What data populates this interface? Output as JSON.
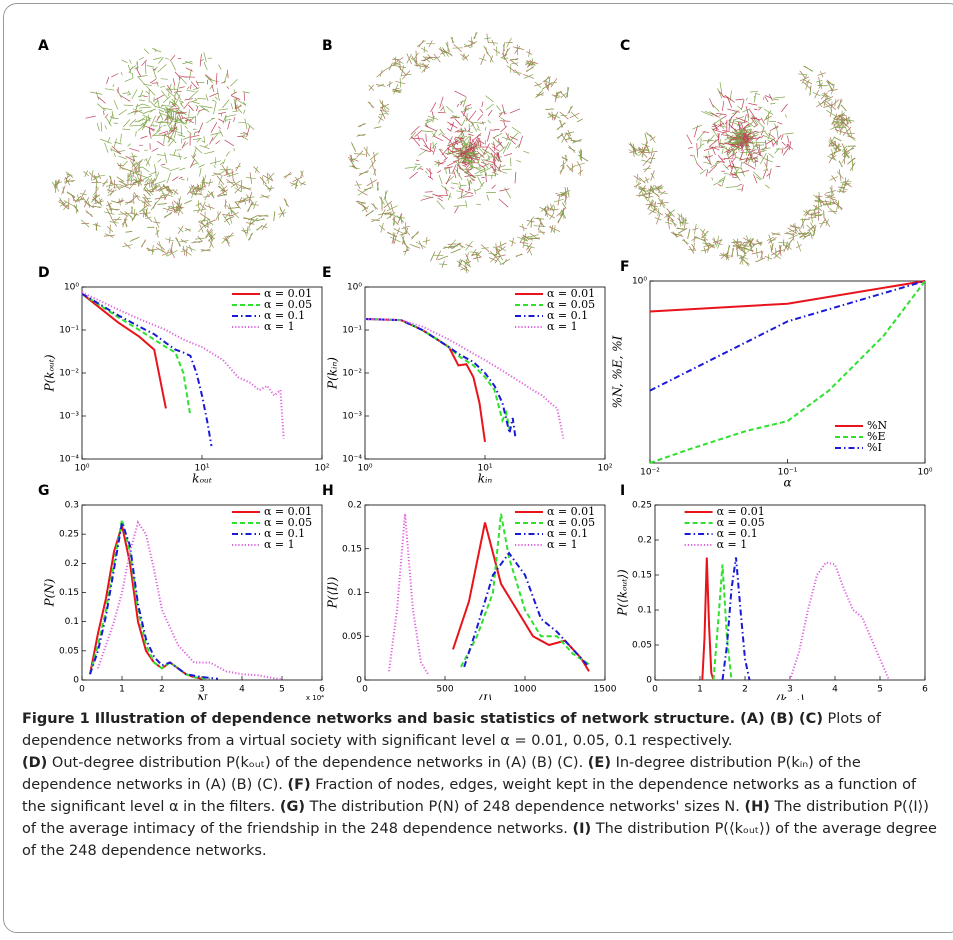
{
  "network_panels": [
    {
      "label": "A"
    },
    {
      "label": "B"
    },
    {
      "label": "C"
    }
  ],
  "chart_data": [
    {
      "type": "line",
      "label": "D",
      "xlabel": "kₒᵤₜ",
      "ylabel": "P(kₒᵤₜ)",
      "xscale": "log",
      "yscale": "log",
      "legend": "upper right",
      "xlim": [
        1,
        100
      ],
      "ylim": [
        0.0001,
        1
      ],
      "xticks": [
        {
          "value": 1,
          "label": "10⁰"
        },
        {
          "value": 10,
          "label": "10¹"
        },
        {
          "value": 100,
          "label": "10²"
        }
      ],
      "yticks": [
        {
          "value": 0.0001,
          "label": "10⁻⁴"
        },
        {
          "value": 0.001,
          "label": "10⁻³"
        },
        {
          "value": 0.01,
          "label": "10⁻²"
        },
        {
          "value": 0.1,
          "label": "10⁻¹"
        },
        {
          "value": 1,
          "label": "10⁰"
        }
      ],
      "series": [
        {
          "name": "α = 0.01",
          "color": "#e8131b",
          "dash": "solid",
          "x": [
            1,
            2,
            3,
            4,
            5
          ],
          "values": [
            0.7,
            0.15,
            0.07,
            0.035,
            0.0015
          ]
        },
        {
          "name": "α = 0.05",
          "color": "#2fe02f",
          "dash": "dashed",
          "x": [
            1,
            2,
            3,
            4,
            5,
            6,
            7,
            8
          ],
          "values": [
            0.7,
            0.2,
            0.1,
            0.06,
            0.04,
            0.03,
            0.01,
            0.001
          ]
        },
        {
          "name": "α = 0.1",
          "color": "#1a1ad6",
          "dash": "dashdot",
          "x": [
            1,
            2,
            3,
            4,
            5,
            6,
            7,
            8,
            9,
            10,
            11,
            12
          ],
          "values": [
            0.7,
            0.22,
            0.12,
            0.08,
            0.05,
            0.035,
            0.03,
            0.025,
            0.01,
            0.003,
            0.0008,
            0.0002
          ]
        },
        {
          "name": "α = 1",
          "color": "#e060e0",
          "dash": "dotted",
          "x": [
            1,
            2,
            3,
            5,
            7,
            10,
            15,
            20,
            25,
            30,
            35,
            40,
            45,
            48
          ],
          "values": [
            0.75,
            0.3,
            0.18,
            0.1,
            0.06,
            0.04,
            0.02,
            0.008,
            0.006,
            0.004,
            0.005,
            0.003,
            0.004,
            0.0003
          ]
        }
      ]
    },
    {
      "type": "line",
      "label": "E",
      "xlabel": "kᵢₙ",
      "ylabel": "P(kᵢₙ)",
      "xscale": "log",
      "yscale": "log",
      "legend": "upper right",
      "xlim": [
        1,
        100
      ],
      "ylim": [
        0.0001,
        1
      ],
      "xticks": [
        {
          "value": 1,
          "label": "10⁰"
        },
        {
          "value": 10,
          "label": "10¹"
        },
        {
          "value": 100,
          "label": "10²"
        }
      ],
      "yticks": [
        {
          "value": 0.0001,
          "label": "10⁻⁴"
        },
        {
          "value": 0.001,
          "label": "10⁻³"
        },
        {
          "value": 0.01,
          "label": "10⁻²"
        },
        {
          "value": 0.1,
          "label": "10⁻¹"
        },
        {
          "value": 1,
          "label": "10⁰"
        }
      ],
      "series": [
        {
          "name": "α = 0.01",
          "color": "#e8131b",
          "dash": "solid",
          "x": [
            1,
            2,
            3,
            4,
            5,
            6,
            7,
            8,
            9,
            10
          ],
          "values": [
            0.18,
            0.17,
            0.1,
            0.06,
            0.04,
            0.015,
            0.016,
            0.008,
            0.002,
            0.00025
          ]
        },
        {
          "name": "α = 0.05",
          "color": "#2fe02f",
          "dash": "dashed",
          "x": [
            1,
            2,
            3,
            4,
            5,
            6,
            8,
            10,
            12,
            14,
            15,
            16
          ],
          "values": [
            0.18,
            0.17,
            0.1,
            0.06,
            0.04,
            0.025,
            0.015,
            0.008,
            0.004,
            0.0008,
            0.0012,
            0.0005
          ]
        },
        {
          "name": "α = 0.1",
          "color": "#1a1ad6",
          "dash": "dashdot",
          "x": [
            1,
            2,
            3,
            4,
            5,
            6,
            8,
            10,
            12,
            14,
            16,
            17,
            18
          ],
          "values": [
            0.18,
            0.17,
            0.1,
            0.06,
            0.04,
            0.028,
            0.018,
            0.01,
            0.005,
            0.002,
            0.0004,
            0.0009,
            0.0003
          ]
        },
        {
          "name": "α = 1",
          "color": "#e060e0",
          "dash": "dotted",
          "x": [
            1,
            2,
            3,
            5,
            7,
            10,
            15,
            20,
            25,
            30,
            35,
            40,
            45
          ],
          "values": [
            0.18,
            0.17,
            0.12,
            0.06,
            0.035,
            0.02,
            0.01,
            0.006,
            0.004,
            0.003,
            0.002,
            0.0015,
            0.0003
          ]
        }
      ]
    },
    {
      "type": "line",
      "label": "F",
      "xlabel": "α",
      "ylabel": "%N, %E, %I",
      "xscale": "log",
      "yscale": "log",
      "legend": "lower right",
      "xlim": [
        0.01,
        1
      ],
      "ylim": [
        0.1,
        1
      ],
      "xticks": [
        {
          "value": 0.01,
          "label": "10⁻²"
        },
        {
          "value": 0.1,
          "label": "10⁻¹"
        },
        {
          "value": 1,
          "label": "10⁰"
        }
      ],
      "yticks": [
        {
          "value": 1,
          "label": "10⁰"
        }
      ],
      "series": [
        {
          "name": "%N",
          "color": "#e8131b",
          "dash": "solid",
          "x": [
            0.01,
            0.1,
            1
          ],
          "values": [
            0.68,
            0.75,
            1
          ]
        },
        {
          "name": "%E",
          "color": "#2fe02f",
          "dash": "dashed",
          "x": [
            0.01,
            0.02,
            0.05,
            0.1,
            0.2,
            0.5,
            1
          ],
          "values": [
            0.1,
            0.12,
            0.15,
            0.17,
            0.25,
            0.5,
            1
          ]
        },
        {
          "name": "%I",
          "color": "#1a1ad6",
          "dash": "dashdot",
          "x": [
            0.01,
            0.1,
            1
          ],
          "values": [
            0.25,
            0.6,
            1
          ]
        }
      ]
    },
    {
      "type": "line",
      "label": "G",
      "xlabel": "N",
      "ylabel": "P(N)",
      "x_offset_label": "x 10⁴",
      "legend": "upper right",
      "xlim": [
        0,
        60000
      ],
      "ylim": [
        0,
        0.3
      ],
      "xticks": [
        0,
        {
          "value": 10000,
          "label": "1"
        },
        {
          "value": 20000,
          "label": "2"
        },
        {
          "value": 30000,
          "label": "3"
        },
        {
          "value": 40000,
          "label": "4"
        },
        {
          "value": 50000,
          "label": "5"
        },
        {
          "value": 60000,
          "label": "6"
        }
      ],
      "yticks": [
        0,
        0.05,
        0.1,
        0.15,
        0.2,
        0.25,
        0.3
      ],
      "series": [
        {
          "name": "α = 0.01",
          "color": "#e8131b",
          "dash": "solid",
          "x": [
            2000,
            4000,
            6000,
            8000,
            10000,
            12000,
            14000,
            16000,
            18000,
            20000,
            22000,
            24000,
            26000,
            28000,
            30000
          ],
          "values": [
            0.01,
            0.08,
            0.14,
            0.22,
            0.265,
            0.2,
            0.1,
            0.05,
            0.03,
            0.02,
            0.03,
            0.02,
            0.01,
            0.005,
            0.002
          ]
        },
        {
          "name": "α = 0.05",
          "color": "#2fe02f",
          "dash": "dashed",
          "x": [
            2000,
            4000,
            6000,
            8000,
            10000,
            12000,
            14000,
            16000,
            18000,
            20000,
            22000,
            24000,
            26000,
            28000,
            32000
          ],
          "values": [
            0.01,
            0.06,
            0.12,
            0.2,
            0.275,
            0.22,
            0.12,
            0.06,
            0.03,
            0.02,
            0.03,
            0.02,
            0.01,
            0.005,
            0.002
          ]
        },
        {
          "name": "α = 0.1",
          "color": "#1a1ad6",
          "dash": "dashdot",
          "x": [
            2000,
            4000,
            6000,
            8000,
            10000,
            12000,
            14000,
            16000,
            18000,
            20000,
            22000,
            24000,
            26000,
            30000,
            34000
          ],
          "values": [
            0.01,
            0.05,
            0.11,
            0.19,
            0.27,
            0.23,
            0.13,
            0.07,
            0.04,
            0.025,
            0.03,
            0.02,
            0.01,
            0.005,
            0.002
          ]
        },
        {
          "name": "α = 1",
          "color": "#e060e0",
          "dash": "dotted",
          "x": [
            4000,
            8000,
            10000,
            12000,
            14000,
            16000,
            18000,
            20000,
            24000,
            28000,
            32000,
            36000,
            40000,
            44000,
            48000,
            50000
          ],
          "values": [
            0.02,
            0.1,
            0.15,
            0.22,
            0.27,
            0.25,
            0.19,
            0.12,
            0.06,
            0.03,
            0.03,
            0.015,
            0.01,
            0.008,
            0.003,
            0.001
          ]
        }
      ]
    },
    {
      "type": "line",
      "label": "H",
      "xlabel": "⟨I⟩",
      "ylabel": "P(⟨I⟩)",
      "legend": "upper right",
      "xlim": [
        0,
        1500
      ],
      "ylim": [
        0,
        0.2
      ],
      "xticks": [
        0,
        500,
        1000,
        1500
      ],
      "yticks": [
        0,
        0.05,
        0.1,
        0.15,
        0.2
      ],
      "series": [
        {
          "name": "α = 0.01",
          "color": "#e8131b",
          "dash": "solid",
          "x": [
            550,
            650,
            750,
            850,
            950,
            1050,
            1150,
            1250,
            1350,
            1400
          ],
          "values": [
            0.035,
            0.09,
            0.18,
            0.11,
            0.08,
            0.05,
            0.04,
            0.045,
            0.025,
            0.01
          ]
        },
        {
          "name": "α = 0.05",
          "color": "#2fe02f",
          "dash": "dashed",
          "x": [
            600,
            700,
            800,
            850,
            900,
            1000,
            1100,
            1200,
            1300,
            1400
          ],
          "values": [
            0.015,
            0.05,
            0.1,
            0.19,
            0.14,
            0.08,
            0.05,
            0.05,
            0.03,
            0.018
          ]
        },
        {
          "name": "α = 0.1",
          "color": "#1a1ad6",
          "dash": "dashdot",
          "x": [
            620,
            700,
            800,
            900,
            1000,
            1100,
            1200,
            1300,
            1400
          ],
          "values": [
            0.015,
            0.06,
            0.12,
            0.145,
            0.12,
            0.07,
            0.055,
            0.035,
            0.015
          ]
        },
        {
          "name": "α = 1",
          "color": "#e060e0",
          "dash": "dotted",
          "x": [
            150,
            200,
            250,
            300,
            350,
            400
          ],
          "values": [
            0.01,
            0.08,
            0.19,
            0.08,
            0.02,
            0.005
          ]
        }
      ]
    },
    {
      "type": "line",
      "label": "I",
      "xlabel": "⟨kₒᵤₜ⟩",
      "ylabel": "P(⟨kₒᵤₜ⟩)",
      "legend": "upper left",
      "xlim": [
        0,
        6
      ],
      "ylim": [
        0,
        0.25
      ],
      "xticks": [
        0,
        1,
        2,
        3,
        4,
        5,
        6
      ],
      "yticks": [
        0,
        0.05,
        0.1,
        0.15,
        0.2,
        0.25
      ],
      "series": [
        {
          "name": "α = 0.01",
          "color": "#e8131b",
          "dash": "solid",
          "x": [
            1.05,
            1.1,
            1.15,
            1.2,
            1.25,
            1.3
          ],
          "values": [
            0,
            0.06,
            0.175,
            0.08,
            0.01,
            0
          ]
        },
        {
          "name": "α = 0.05",
          "color": "#2fe02f",
          "dash": "dashed",
          "x": [
            1.3,
            1.4,
            1.5,
            1.6,
            1.7
          ],
          "values": [
            0,
            0.08,
            0.165,
            0.06,
            0
          ]
        },
        {
          "name": "α = 0.1",
          "color": "#1a1ad6",
          "dash": "dashdot",
          "x": [
            1.5,
            1.6,
            1.7,
            1.8,
            1.9,
            2.0,
            2.1
          ],
          "values": [
            0,
            0.05,
            0.13,
            0.175,
            0.1,
            0.03,
            0
          ]
        },
        {
          "name": "α = 1",
          "color": "#e060e0",
          "dash": "dotted",
          "x": [
            3,
            3.2,
            3.4,
            3.6,
            3.8,
            4,
            4.2,
            4.4,
            4.6,
            4.8,
            5,
            5.2
          ],
          "values": [
            0,
            0.04,
            0.1,
            0.15,
            0.168,
            0.165,
            0.13,
            0.1,
            0.09,
            0.06,
            0.03,
            0
          ]
        }
      ]
    }
  ],
  "caption": {
    "paragraphs": [
      [
        {
          "text": "Figure 1  Illustration of dependence networks and basic statistics of network structure.",
          "bold": true
        },
        {
          "text": " (A) (B) (C)",
          "bold": true
        },
        {
          "text": " Plots of dependence networks from a virtual society with significant level α = 0.01, 0.05, 0.1 respectively.",
          "bold": false
        }
      ],
      [
        {
          "text": "(D)",
          "bold": true
        },
        {
          "text": " Out-degree distribution P(kₒᵤₜ) of the dependence networks in (A) (B) (C). ",
          "bold": false
        },
        {
          "text": "(E)",
          "bold": true
        },
        {
          "text": " In-degree distribution P(kᵢₙ) of the dependence networks in (A) (B) (C). ",
          "bold": false
        },
        {
          "text": "(F)",
          "bold": true
        },
        {
          "text": " Fraction of nodes, edges, weight kept in the dependence networks as a function of the significant level α in the filters. ",
          "bold": false
        },
        {
          "text": "(G)",
          "bold": true
        },
        {
          "text": " The distribution P(N) of 248 dependence networks' sizes N. ",
          "bold": false
        },
        {
          "text": "(H)",
          "bold": true
        },
        {
          "text": " The distribution P(⟨I⟩) of the average intimacy of the friendship in the 248 dependence networks. ",
          "bold": false
        },
        {
          "text": "(I)",
          "bold": true
        },
        {
          "text": " The distribution P(⟨kₒᵤₜ⟩) of the average degree of the 248 dependence networks.",
          "bold": false
        }
      ]
    ]
  }
}
